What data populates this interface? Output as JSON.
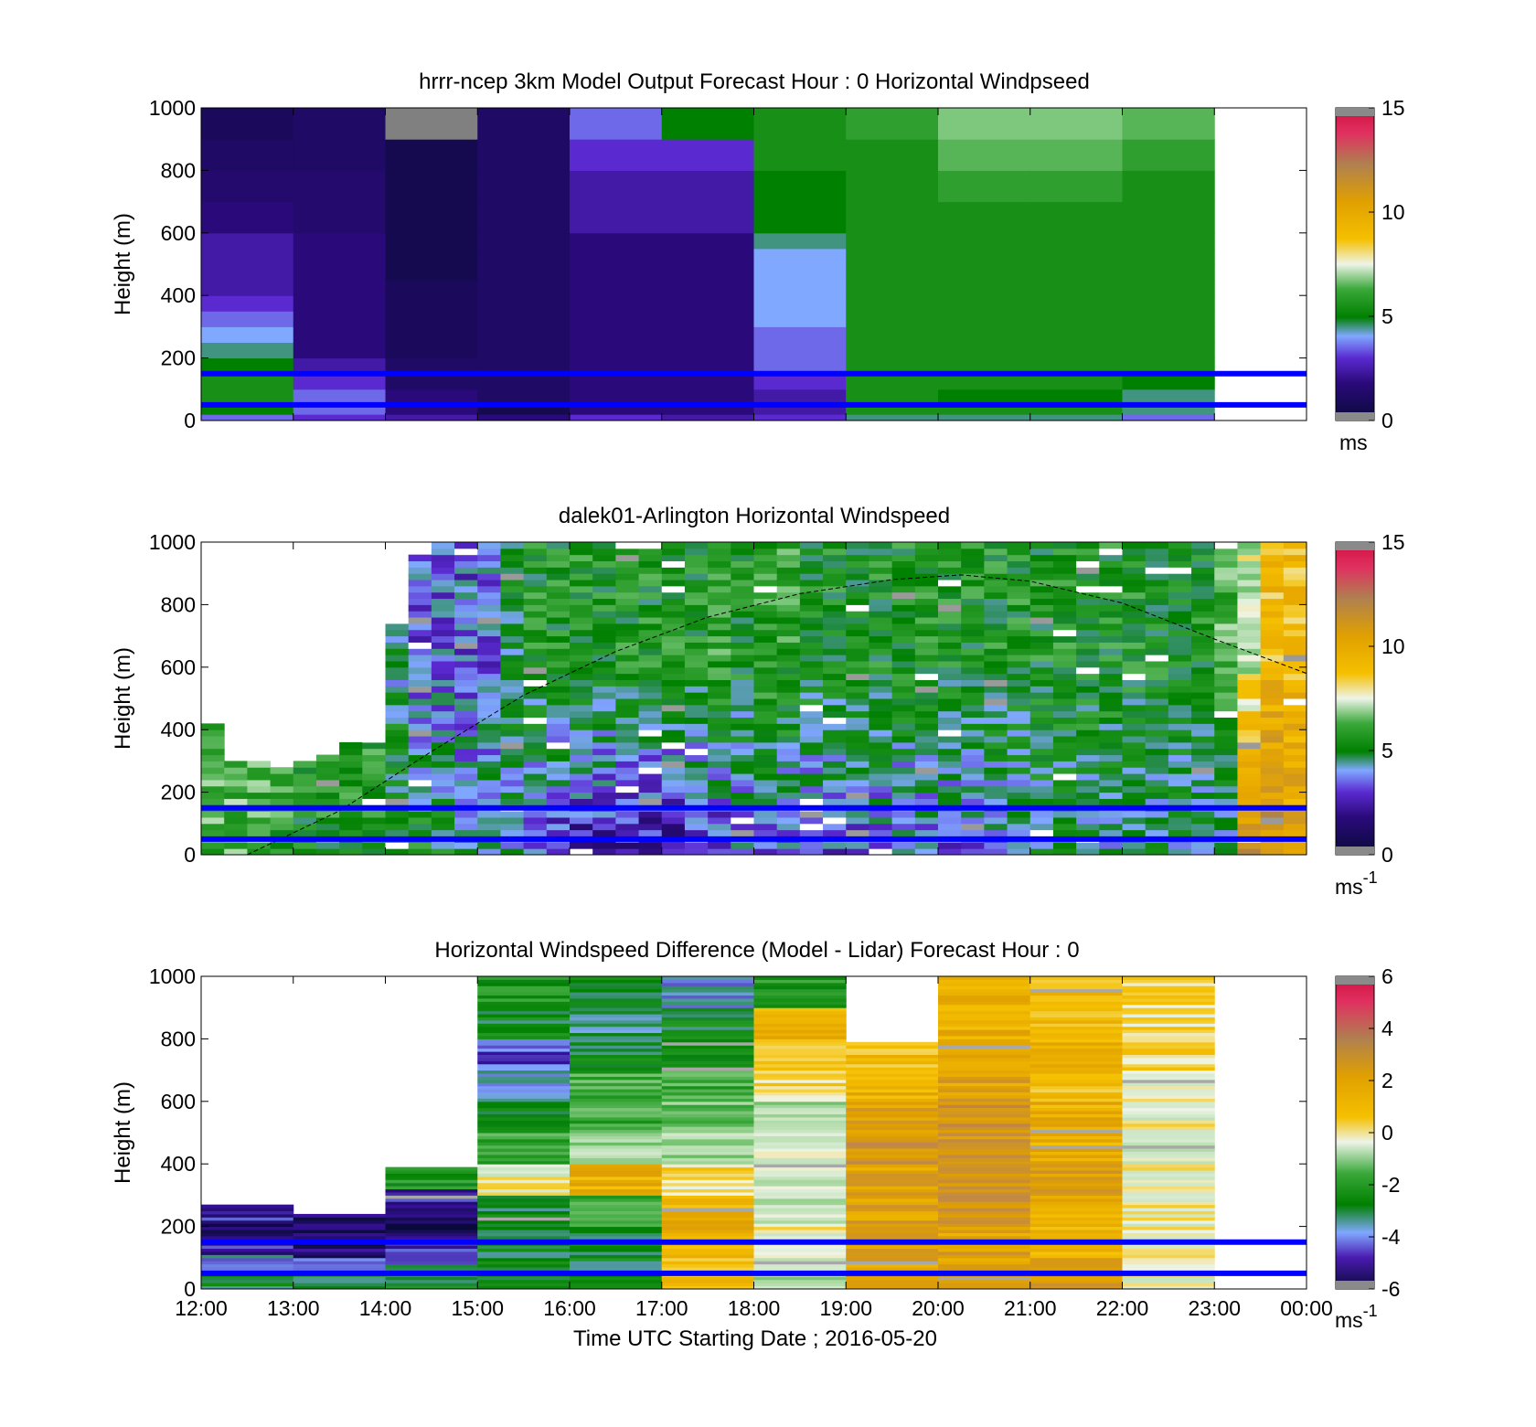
{
  "figure": {
    "xlabel": "Time UTC  Starting Date ; 2016-05-20",
    "x_ticks": [
      "12:00",
      "13:00",
      "14:00",
      "15:00",
      "16:00",
      "17:00",
      "18:00",
      "19:00",
      "20:00",
      "21:00",
      "22:00",
      "23:00",
      "00:00"
    ],
    "ylabel": "Height (m)",
    "y_ticks": [
      "0",
      "200",
      "400",
      "600",
      "800",
      "1000"
    ],
    "reference_lines_m": [
      50,
      150
    ],
    "reference_line_color": "#0000ff"
  },
  "chart_data": [
    {
      "type": "heatmap",
      "title": "hrrr-ncep 3km Model Output   Forecast Hour : 0 Horizontal Windpseed",
      "ylabel": "Height (m)",
      "ylim": [
        0,
        1000
      ],
      "xlim_hours": [
        12,
        24
      ],
      "colorbar": {
        "min": 0,
        "max": 15,
        "ticks": [
          "0",
          "5",
          "10",
          "15"
        ],
        "unit": "ms",
        "unit_sup": ""
      },
      "columns_start_hour": [
        12,
        13,
        14,
        15,
        16,
        17,
        18,
        19,
        20,
        21,
        22
      ],
      "rows": [
        {
          "h": [
            0,
            20
          ],
          "v": [
            3,
            2.5,
            2,
            1.5,
            2.5,
            2,
            2.5,
            4,
            4,
            4,
            3
          ]
        },
        {
          "h": [
            20,
            50
          ],
          "v": [
            4.5,
            3,
            1.5,
            0.5,
            1.5,
            1.5,
            2,
            5,
            5,
            5,
            4
          ]
        },
        {
          "h": [
            50,
            100
          ],
          "v": [
            5,
            3,
            1.5,
            1,
            1.5,
            1.5,
            2,
            5,
            4.5,
            4.5,
            4
          ]
        },
        {
          "h": [
            100,
            150
          ],
          "v": [
            5,
            2.5,
            1,
            1,
            1.5,
            1.5,
            2.5,
            5,
            5,
            5,
            4.5
          ]
        },
        {
          "h": [
            150,
            200
          ],
          "v": [
            4.5,
            2,
            1,
            1,
            1.5,
            1.5,
            3,
            5,
            5,
            5,
            5
          ]
        },
        {
          "h": [
            200,
            250
          ],
          "v": [
            4,
            1.5,
            0.8,
            1,
            1.5,
            1.5,
            3,
            5,
            5,
            5,
            5
          ]
        },
        {
          "h": [
            250,
            300
          ],
          "v": [
            3.5,
            1.5,
            0.8,
            1,
            1.5,
            1.5,
            3,
            5,
            5,
            5,
            5
          ]
        },
        {
          "h": [
            300,
            350
          ],
          "v": [
            3,
            1.5,
            0.8,
            1,
            1.5,
            1.5,
            3.5,
            5,
            5,
            5,
            5
          ]
        },
        {
          "h": [
            350,
            400
          ],
          "v": [
            2.5,
            1.5,
            0.8,
            1,
            1.5,
            1.5,
            3.5,
            5,
            5,
            5,
            5
          ]
        },
        {
          "h": [
            400,
            450
          ],
          "v": [
            2,
            1.5,
            0.8,
            1,
            1.5,
            1.5,
            3.5,
            5,
            5,
            5,
            5
          ]
        },
        {
          "h": [
            450,
            500
          ],
          "v": [
            2,
            1.5,
            0.5,
            1,
            1.5,
            1.5,
            3.5,
            5,
            5,
            5,
            5
          ]
        },
        {
          "h": [
            500,
            550
          ],
          "v": [
            2,
            1.5,
            0.5,
            1,
            1.5,
            1.5,
            3.5,
            5,
            5,
            5,
            5
          ]
        },
        {
          "h": [
            550,
            600
          ],
          "v": [
            2,
            1.5,
            0.5,
            1,
            1.5,
            1.5,
            4,
            5,
            5,
            5,
            5
          ]
        },
        {
          "h": [
            600,
            700
          ],
          "v": [
            1.5,
            1.2,
            0.5,
            1,
            2,
            2,
            4.5,
            5,
            5,
            5,
            5
          ]
        },
        {
          "h": [
            700,
            800
          ],
          "v": [
            1.2,
            1.2,
            0.5,
            1,
            2,
            2,
            4.5,
            5,
            5.5,
            5.5,
            5
          ]
        },
        {
          "h": [
            800,
            900
          ],
          "v": [
            1,
            1,
            0.5,
            1,
            2.5,
            2.5,
            5,
            5,
            6,
            6,
            5.5
          ]
        },
        {
          "h": [
            900,
            1000
          ],
          "v": [
            0.8,
            1,
            0,
            1,
            3,
            4.5,
            5,
            5.5,
            6.5,
            6.5,
            6
          ]
        }
      ],
      "overlay": []
    },
    {
      "type": "heatmap",
      "title": "dalek01-Arlington  Horizontal Windspeed",
      "ylabel": "Height (m)",
      "ylim": [
        0,
        1000
      ],
      "xlim_hours": [
        12,
        24
      ],
      "colorbar": {
        "min": 0,
        "max": 15,
        "ticks": [
          "0",
          "5",
          "10",
          "15"
        ],
        "unit": "ms",
        "unit_sup": "-1"
      },
      "time_bins_hours": 0.25,
      "profile_hours": [
        12.0,
        12.25,
        12.5,
        12.75,
        13.0,
        13.25,
        13.5,
        13.75,
        14.0,
        14.25,
        14.5,
        14.75,
        15.0,
        15.25,
        15.5,
        15.75,
        16.0,
        16.25,
        16.5,
        16.75,
        17.0,
        17.25,
        17.5,
        17.75,
        18.0,
        18.25,
        18.5,
        18.75,
        19.0,
        19.25,
        19.5,
        19.75,
        20.0,
        20.25,
        20.5,
        20.75,
        21.0,
        21.25,
        21.5,
        21.75,
        22.0,
        22.25,
        22.5,
        22.75,
        23.0,
        23.25,
        23.5,
        23.75
      ],
      "profile_top_m": [
        420,
        300,
        300,
        280,
        300,
        320,
        350,
        370,
        750,
        950,
        1000,
        1000,
        1000,
        1000,
        1000,
        1000,
        1000,
        1000,
        1000,
        1000,
        1000,
        1000,
        1000,
        1000,
        1000,
        1000,
        1000,
        1000,
        1000,
        1000,
        1000,
        1000,
        1000,
        1000,
        1000,
        1000,
        1000,
        1000,
        1000,
        1000,
        1000,
        1000,
        1000,
        1000,
        1000,
        1000,
        1000,
        1000
      ],
      "profile_speed_low_ms": [
        6,
        6,
        6,
        5.5,
        5,
        5,
        5,
        5,
        5,
        5,
        4.5,
        4,
        4,
        3.5,
        3,
        2.5,
        2,
        2,
        2,
        2,
        2,
        2.5,
        2.5,
        3,
        3,
        3,
        3,
        3,
        3,
        3,
        3,
        3,
        3,
        3,
        3.5,
        3.5,
        4,
        4,
        4,
        4,
        4,
        4,
        4,
        4,
        4,
        11,
        11,
        10
      ],
      "profile_speed_high_ms": [
        6,
        6,
        6,
        5.5,
        5.5,
        5.5,
        5.5,
        5.5,
        4,
        3,
        3,
        3,
        3,
        4.5,
        5,
        5,
        5,
        5,
        5,
        5,
        5,
        5,
        5.5,
        5,
        5.5,
        5.5,
        5,
        5,
        5,
        5,
        5,
        5,
        5,
        5,
        5,
        5,
        5,
        5,
        5,
        5,
        5,
        5,
        5,
        5,
        6,
        7,
        9,
        9
      ],
      "overlay": [
        {
          "x": 12.5,
          "y": 0
        },
        {
          "x": 13.5,
          "y": 140
        },
        {
          "x": 14.5,
          "y": 330
        },
        {
          "x": 15.5,
          "y": 510
        },
        {
          "x": 16.5,
          "y": 650
        },
        {
          "x": 17.5,
          "y": 760
        },
        {
          "x": 18.5,
          "y": 835
        },
        {
          "x": 19.5,
          "y": 880
        },
        {
          "x": 20.25,
          "y": 895
        },
        {
          "x": 21,
          "y": 875
        },
        {
          "x": 22,
          "y": 805
        },
        {
          "x": 23,
          "y": 690
        },
        {
          "x": 24,
          "y": 580
        }
      ]
    },
    {
      "type": "heatmap",
      "title": "Horizontal Windspeed Difference (Model - Lidar) Forecast Hour : 0",
      "ylabel": "Height (m)",
      "ylim": [
        0,
        1000
      ],
      "xlim_hours": [
        12,
        24
      ],
      "colorbar": {
        "min": -6,
        "max": 6,
        "ticks": [
          "-6",
          "-4",
          "-2",
          "0",
          "2",
          "4",
          "6"
        ],
        "unit": "ms",
        "unit_sup": "-1"
      },
      "columns_start_hour": [
        12,
        13,
        14,
        15,
        16,
        17,
        18,
        19,
        20,
        21,
        22
      ],
      "column_top_m": [
        270,
        240,
        390,
        1000,
        1000,
        1000,
        1000,
        1000,
        1000,
        1000,
        1000
      ],
      "column_blank_ranges_m": [
        [],
        [],
        [],
        [],
        [],
        [],
        [],
        [
          [
            790,
            1000
          ]
        ],
        [],
        [],
        []
      ],
      "column_profiles": [
        [
          -3,
          -4,
          -5,
          -5.5,
          -5
        ],
        [
          -3,
          -4,
          -5.5,
          -5.5,
          -5.5
        ],
        [
          -3,
          -5,
          -5.5,
          -5,
          -2.5
        ],
        [
          -3,
          -3,
          -3,
          0,
          -2,
          -3,
          -4,
          -4.5,
          -3,
          -2.5
        ],
        [
          -3,
          -3,
          -2,
          1.5,
          -1,
          -2,
          -2,
          -3,
          -3.5,
          -3
        ],
        [
          1,
          1.5,
          1.5,
          0.5,
          -1,
          -1.5,
          -2,
          -2.5,
          -3,
          -4
        ],
        [
          -1,
          0,
          -0.5,
          -0.5,
          -0.5,
          -1,
          0.5,
          1,
          1.5,
          -2.5
        ],
        [
          2,
          2,
          2,
          2,
          2.5,
          2,
          1.5,
          1,
          1.5,
          -1
        ],
        [
          2,
          2,
          2.5,
          2.5,
          2.5,
          2.5,
          2,
          2,
          1.5,
          1.5
        ],
        [
          2,
          1.5,
          1.5,
          2,
          1.5,
          1.5,
          1,
          1.5,
          1,
          1
        ],
        [
          0,
          0,
          0,
          0,
          -0.5,
          0,
          0,
          0.5,
          0.5,
          0.5
        ]
      ],
      "overlay": []
    }
  ]
}
